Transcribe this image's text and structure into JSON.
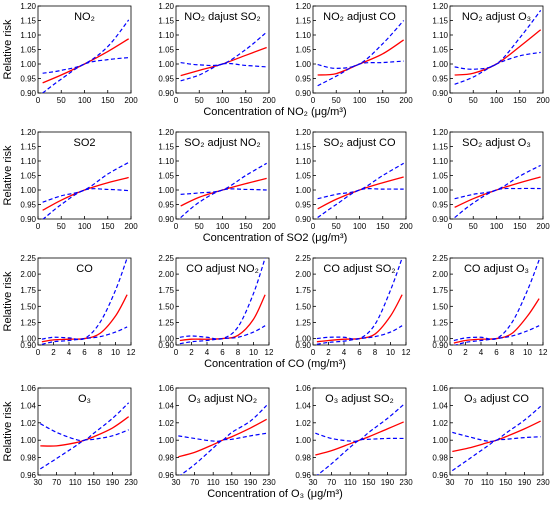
{
  "figure": {
    "row_ylabel": "Relative risk",
    "colors": {
      "estimate": "#ff0000",
      "ci": "#0000ff",
      "axis": "#000000"
    }
  },
  "rows": [
    {
      "xlabel": "Concentration of NO₂ (μg/m³)",
      "xlim": [
        0,
        200
      ],
      "xticks": [
        0,
        50,
        100,
        150,
        200
      ],
      "ylim": [
        0.9,
        1.2
      ],
      "yticks": [
        "0.90",
        "0.95",
        "1.00",
        "1.05",
        "1.10",
        "1.15",
        "1.20"
      ]
    },
    {
      "xlabel": "Concentration of SO2 (μg/m³)",
      "xlim": [
        0,
        200
      ],
      "xticks": [
        0,
        50,
        100,
        150,
        200
      ],
      "ylim": [
        0.9,
        1.2
      ],
      "yticks": [
        "0.90",
        "0.95",
        "1.00",
        "1.05",
        "1.10",
        "1.15",
        "1.20"
      ]
    },
    {
      "xlabel": "Concentration of CO (mg/m³)",
      "xlim": [
        0,
        12
      ],
      "xticks": [
        0,
        2,
        4,
        6,
        8,
        10,
        12
      ],
      "ylim": [
        0.9,
        2.25
      ],
      "yticks": [
        "0.90",
        "1.00",
        "1.25",
        "1.50",
        "1.75",
        "2.00",
        "2.25"
      ]
    },
    {
      "xlabel": "Concentration of O₃ (μg/m³)",
      "xlim": [
        30,
        230
      ],
      "xticks": [
        30,
        70,
        110,
        150,
        190,
        230
      ],
      "ylim": [
        0.96,
        1.06
      ],
      "yticks": [
        "0.96",
        "0.98",
        "1.00",
        "1.02",
        "1.04",
        "1.06"
      ]
    }
  ],
  "chart_data": [
    {
      "type": "line",
      "title": "NO₂",
      "row": 0,
      "col": 0,
      "series": [
        {
          "role": "estimate",
          "x": [
            10,
            50,
            100,
            150,
            195
          ],
          "y": [
            0.935,
            0.962,
            1.0,
            1.043,
            1.087
          ]
        },
        {
          "role": "upper",
          "x": [
            10,
            50,
            100,
            150,
            195
          ],
          "y": [
            0.968,
            0.978,
            1.0,
            1.06,
            1.152
          ]
        },
        {
          "role": "lower",
          "x": [
            10,
            50,
            100,
            150,
            195
          ],
          "y": [
            0.9,
            0.948,
            1.0,
            1.015,
            1.022
          ]
        }
      ]
    },
    {
      "type": "line",
      "title": "NO₂ dajust SO₂",
      "row": 0,
      "col": 1,
      "series": [
        {
          "role": "estimate",
          "x": [
            10,
            50,
            100,
            150,
            195
          ],
          "y": [
            0.96,
            0.978,
            1.0,
            1.03,
            1.057
          ]
        },
        {
          "role": "upper",
          "x": [
            10,
            50,
            100,
            150,
            195
          ],
          "y": [
            1.005,
            0.997,
            1.0,
            1.05,
            1.11
          ]
        },
        {
          "role": "lower",
          "x": [
            10,
            50,
            100,
            150,
            195
          ],
          "y": [
            0.942,
            0.962,
            1.0,
            0.995,
            0.99
          ]
        }
      ]
    },
    {
      "type": "line",
      "title": "NO₂ adjust CO",
      "row": 0,
      "col": 2,
      "series": [
        {
          "role": "estimate",
          "x": [
            10,
            50,
            100,
            150,
            195
          ],
          "y": [
            0.962,
            0.967,
            1.0,
            1.035,
            1.083
          ]
        },
        {
          "role": "upper",
          "x": [
            10,
            50,
            100,
            150,
            195
          ],
          "y": [
            0.998,
            0.985,
            1.0,
            1.07,
            1.15
          ]
        },
        {
          "role": "lower",
          "x": [
            10,
            50,
            100,
            150,
            195
          ],
          "y": [
            0.925,
            0.958,
            1.0,
            1.005,
            1.01
          ]
        }
      ]
    },
    {
      "type": "line",
      "title": "NO₂ adjust  O₃",
      "row": 0,
      "col": 3,
      "series": [
        {
          "role": "estimate",
          "x": [
            10,
            50,
            100,
            150,
            195
          ],
          "y": [
            0.962,
            0.968,
            1.0,
            1.06,
            1.118
          ]
        },
        {
          "role": "upper",
          "x": [
            10,
            50,
            100,
            150,
            195
          ],
          "y": [
            0.99,
            0.982,
            1.0,
            1.09,
            1.185
          ]
        },
        {
          "role": "lower",
          "x": [
            10,
            50,
            100,
            150,
            195
          ],
          "y": [
            0.93,
            0.955,
            1.0,
            1.028,
            1.04
          ]
        }
      ]
    },
    {
      "type": "line",
      "title": "SO2",
      "row": 1,
      "col": 0,
      "series": [
        {
          "role": "estimate",
          "x": [
            10,
            50,
            100,
            150,
            195
          ],
          "y": [
            0.93,
            0.965,
            1.0,
            1.025,
            1.043
          ]
        },
        {
          "role": "upper",
          "x": [
            10,
            50,
            100,
            150,
            195
          ],
          "y": [
            0.958,
            0.98,
            1.0,
            1.055,
            1.095
          ]
        },
        {
          "role": "lower",
          "x": [
            10,
            50,
            100,
            150,
            195
          ],
          "y": [
            0.898,
            0.95,
            1.0,
            1.002,
            0.998
          ]
        }
      ]
    },
    {
      "type": "line",
      "title": "SO₂ adjust NO₂",
      "row": 1,
      "col": 1,
      "series": [
        {
          "role": "estimate",
          "x": [
            10,
            50,
            100,
            150,
            195
          ],
          "y": [
            0.945,
            0.975,
            1.0,
            1.022,
            1.04
          ]
        },
        {
          "role": "upper",
          "x": [
            10,
            50,
            100,
            150,
            195
          ],
          "y": [
            0.985,
            0.99,
            1.0,
            1.05,
            1.092
          ]
        },
        {
          "role": "lower",
          "x": [
            10,
            50,
            100,
            150,
            195
          ],
          "y": [
            0.905,
            0.958,
            1.0,
            1.002,
            1.0
          ]
        }
      ]
    },
    {
      "type": "line",
      "title": "SO₂ adjust CO",
      "row": 1,
      "col": 2,
      "series": [
        {
          "role": "estimate",
          "x": [
            10,
            50,
            100,
            150,
            195
          ],
          "y": [
            0.935,
            0.968,
            1.0,
            1.025,
            1.045
          ]
        },
        {
          "role": "upper",
          "x": [
            10,
            50,
            100,
            150,
            195
          ],
          "y": [
            0.97,
            0.985,
            1.0,
            1.05,
            1.092
          ]
        },
        {
          "role": "lower",
          "x": [
            10,
            50,
            100,
            150,
            195
          ],
          "y": [
            0.905,
            0.95,
            1.0,
            1.003,
            1.003
          ]
        }
      ]
    },
    {
      "type": "line",
      "title": "SO₂ adjust O₃",
      "row": 1,
      "col": 3,
      "series": [
        {
          "role": "estimate",
          "x": [
            10,
            50,
            100,
            150,
            195
          ],
          "y": [
            0.94,
            0.97,
            1.0,
            1.025,
            1.045
          ]
        },
        {
          "role": "upper",
          "x": [
            10,
            50,
            100,
            150,
            195
          ],
          "y": [
            0.97,
            0.985,
            1.0,
            1.048,
            1.085
          ]
        },
        {
          "role": "lower",
          "x": [
            10,
            50,
            100,
            150,
            195
          ],
          "y": [
            0.905,
            0.955,
            1.0,
            1.005,
            1.005
          ]
        }
      ]
    },
    {
      "type": "line",
      "title": "CO",
      "row": 2,
      "col": 0,
      "series": [
        {
          "role": "estimate",
          "x": [
            0.5,
            2,
            4,
            6,
            8,
            10,
            11.5
          ],
          "y": [
            0.95,
            0.98,
            0.99,
            1.0,
            1.08,
            1.35,
            1.68
          ]
        },
        {
          "role": "upper",
          "x": [
            0.5,
            2,
            4,
            6,
            8,
            10,
            11.5
          ],
          "y": [
            0.99,
            1.02,
            1.01,
            1.0,
            1.25,
            1.75,
            2.25
          ]
        },
        {
          "role": "lower",
          "x": [
            0.5,
            2,
            4,
            6,
            8,
            10,
            11.5
          ],
          "y": [
            0.91,
            0.95,
            0.97,
            1.0,
            1.03,
            1.1,
            1.18
          ]
        }
      ]
    },
    {
      "type": "line",
      "title": "CO adjust NO₂",
      "row": 2,
      "col": 1,
      "series": [
        {
          "role": "estimate",
          "x": [
            0.5,
            2,
            4,
            6,
            8,
            10,
            11.5
          ],
          "y": [
            0.97,
            0.99,
            0.99,
            1.0,
            1.05,
            1.3,
            1.68
          ]
        },
        {
          "role": "upper",
          "x": [
            0.5,
            2,
            4,
            6,
            8,
            10,
            11.5
          ],
          "y": [
            1.02,
            1.04,
            1.02,
            1.0,
            1.18,
            1.7,
            2.25
          ]
        },
        {
          "role": "lower",
          "x": [
            0.5,
            2,
            4,
            6,
            8,
            10,
            11.5
          ],
          "y": [
            0.92,
            0.95,
            0.97,
            1.0,
            1.02,
            1.1,
            1.2
          ]
        }
      ]
    },
    {
      "type": "line",
      "title": "CO adjust SO₂",
      "row": 2,
      "col": 2,
      "series": [
        {
          "role": "estimate",
          "x": [
            0.5,
            2,
            4,
            6,
            8,
            10,
            11.5
          ],
          "y": [
            0.95,
            0.97,
            0.99,
            1.0,
            1.07,
            1.35,
            1.68
          ]
        },
        {
          "role": "upper",
          "x": [
            0.5,
            2,
            4,
            6,
            8,
            10,
            11.5
          ],
          "y": [
            1.0,
            1.02,
            1.02,
            1.0,
            1.22,
            1.75,
            2.25
          ]
        },
        {
          "role": "lower",
          "x": [
            0.5,
            2,
            4,
            6,
            8,
            10,
            11.5
          ],
          "y": [
            0.91,
            0.94,
            0.96,
            1.0,
            1.03,
            1.1,
            1.2
          ]
        }
      ]
    },
    {
      "type": "line",
      "title": "CO adjust O₃",
      "row": 2,
      "col": 3,
      "series": [
        {
          "role": "estimate",
          "x": [
            0.5,
            2,
            4,
            6,
            8,
            10,
            11.5
          ],
          "y": [
            0.93,
            0.97,
            0.99,
            1.0,
            1.08,
            1.35,
            1.62
          ]
        },
        {
          "role": "upper",
          "x": [
            0.5,
            2,
            4,
            6,
            8,
            10,
            11.5
          ],
          "y": [
            0.97,
            1.01,
            1.02,
            1.0,
            1.25,
            1.75,
            2.22
          ]
        },
        {
          "role": "lower",
          "x": [
            0.5,
            2,
            4,
            6,
            8,
            10,
            11.5
          ],
          "y": [
            0.89,
            0.94,
            0.97,
            1.0,
            1.04,
            1.12,
            1.2
          ]
        }
      ]
    },
    {
      "type": "line",
      "title": "O₃",
      "row": 3,
      "col": 0,
      "series": [
        {
          "role": "estimate",
          "x": [
            35,
            70,
            110,
            130,
            150,
            190,
            225
          ],
          "y": [
            0.9935,
            0.9935,
            0.997,
            1.0,
            1.004,
            1.014,
            1.027
          ]
        },
        {
          "role": "upper",
          "x": [
            35,
            70,
            110,
            130,
            150,
            190,
            225
          ],
          "y": [
            1.019,
            1.009,
            1.001,
            1.0,
            1.008,
            1.025,
            1.043
          ]
        },
        {
          "role": "lower",
          "x": [
            35,
            70,
            110,
            130,
            150,
            190,
            225
          ],
          "y": [
            0.967,
            0.979,
            0.993,
            1.0,
            1.001,
            1.005,
            1.012
          ]
        }
      ]
    },
    {
      "type": "line",
      "title": "O₃ adjust NO₂",
      "row": 3,
      "col": 1,
      "series": [
        {
          "role": "estimate",
          "x": [
            35,
            70,
            110,
            130,
            150,
            190,
            225
          ],
          "y": [
            0.981,
            0.986,
            0.995,
            1.0,
            1.004,
            1.014,
            1.024
          ]
        },
        {
          "role": "upper",
          "x": [
            35,
            70,
            110,
            130,
            150,
            190,
            225
          ],
          "y": [
            1.005,
            1.002,
            0.999,
            1.0,
            1.009,
            1.022,
            1.04
          ]
        },
        {
          "role": "lower",
          "x": [
            35,
            70,
            110,
            130,
            150,
            190,
            225
          ],
          "y": [
            0.958,
            0.972,
            0.991,
            1.0,
            1.001,
            1.005,
            1.008
          ]
        }
      ]
    },
    {
      "type": "line",
      "title": "O₃ adjust SO₂",
      "row": 3,
      "col": 2,
      "series": [
        {
          "role": "estimate",
          "x": [
            35,
            70,
            110,
            130,
            150,
            190,
            225
          ],
          "y": [
            0.983,
            0.988,
            0.996,
            1.0,
            1.004,
            1.013,
            1.021
          ]
        },
        {
          "role": "upper",
          "x": [
            35,
            70,
            110,
            130,
            150,
            190,
            225
          ],
          "y": [
            1.008,
            1.002,
            0.999,
            1.0,
            1.009,
            1.025,
            1.041
          ]
        },
        {
          "role": "lower",
          "x": [
            35,
            70,
            110,
            130,
            150,
            190,
            225
          ],
          "y": [
            0.958,
            0.973,
            0.992,
            1.0,
            1.001,
            1.002,
            1.002
          ]
        }
      ]
    },
    {
      "type": "line",
      "title": "O₃ adjust CO",
      "row": 3,
      "col": 3,
      "series": [
        {
          "role": "estimate",
          "x": [
            35,
            70,
            110,
            130,
            150,
            190,
            225
          ],
          "y": [
            0.987,
            0.991,
            0.997,
            1.0,
            1.004,
            1.013,
            1.022
          ]
        },
        {
          "role": "upper",
          "x": [
            35,
            70,
            110,
            130,
            150,
            190,
            225
          ],
          "y": [
            1.009,
            1.004,
            0.999,
            1.0,
            1.008,
            1.023,
            1.039
          ]
        },
        {
          "role": "lower",
          "x": [
            35,
            70,
            110,
            130,
            150,
            190,
            225
          ],
          "y": [
            0.965,
            0.978,
            0.993,
            1.0,
            1.001,
            1.003,
            1.004
          ]
        }
      ]
    }
  ]
}
